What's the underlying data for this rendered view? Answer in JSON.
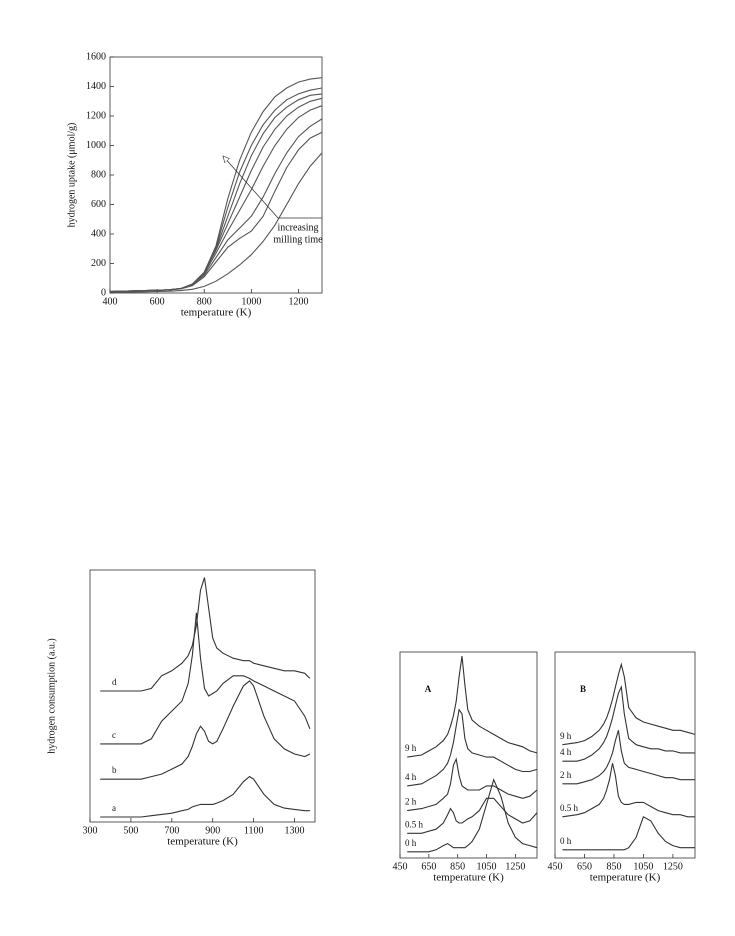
{
  "chart_data": [
    {
      "type": "line",
      "x_label": "temperature (K)",
      "y_label": "hydrogen uptake (μmol/g)",
      "annotation": [
        "increasing",
        "milling time"
      ],
      "color": "#555555",
      "xlim": [
        400,
        1300
      ],
      "ylim": [
        0,
        1600
      ],
      "xticks": [
        400,
        600,
        800,
        1000,
        1200
      ],
      "yticks": [
        0,
        200,
        400,
        600,
        800,
        1000,
        1200,
        1400,
        1600
      ],
      "x": [
        400,
        450,
        500,
        550,
        600,
        650,
        700,
        750,
        800,
        850,
        900,
        950,
        1000,
        1050,
        1100,
        1150,
        1200,
        1250,
        1300
      ],
      "series": [
        {
          "values": [
            10,
            12,
            14,
            16,
            18,
            22,
            30,
            60,
            140,
            320,
            640,
            900,
            1090,
            1230,
            1330,
            1390,
            1430,
            1450,
            1460
          ]
        },
        {
          "values": [
            10,
            12,
            14,
            16,
            18,
            22,
            30,
            60,
            140,
            310,
            580,
            820,
            1000,
            1140,
            1240,
            1310,
            1350,
            1375,
            1390
          ]
        },
        {
          "values": [
            10,
            12,
            14,
            16,
            18,
            22,
            30,
            60,
            140,
            300,
            520,
            740,
            930,
            1080,
            1190,
            1260,
            1310,
            1340,
            1350
          ]
        },
        {
          "values": [
            10,
            12,
            14,
            16,
            18,
            22,
            30,
            60,
            140,
            290,
            470,
            650,
            830,
            990,
            1110,
            1200,
            1260,
            1300,
            1320
          ]
        },
        {
          "values": [
            10,
            12,
            14,
            16,
            18,
            22,
            30,
            60,
            130,
            270,
            420,
            560,
            700,
            860,
            1000,
            1110,
            1190,
            1240,
            1270
          ]
        },
        {
          "values": [
            10,
            12,
            14,
            16,
            18,
            22,
            30,
            55,
            120,
            240,
            360,
            440,
            520,
            650,
            810,
            950,
            1060,
            1130,
            1180
          ]
        },
        {
          "values": [
            10,
            12,
            14,
            16,
            18,
            22,
            28,
            50,
            110,
            210,
            310,
            370,
            420,
            520,
            690,
            850,
            970,
            1050,
            1090
          ]
        },
        {
          "values": [
            5,
            6,
            7,
            8,
            10,
            12,
            16,
            25,
            45,
            80,
            130,
            190,
            260,
            350,
            460,
            600,
            740,
            860,
            950
          ]
        }
      ]
    },
    {
      "type": "line",
      "x_label": "temperature (K)",
      "y_label": "hydrogen consumption (a.u.)",
      "color": "#333333",
      "xlim": [
        300,
        1400
      ],
      "ylim": [
        0,
        100
      ],
      "xticks": [
        300,
        500,
        700,
        900,
        1100,
        1300
      ],
      "x": [
        350,
        400,
        450,
        500,
        550,
        600,
        650,
        700,
        750,
        780,
        800,
        820,
        840,
        860,
        880,
        900,
        920,
        950,
        1000,
        1050,
        1080,
        1100,
        1150,
        1200,
        1250,
        1300,
        1350,
        1375
      ],
      "series": [
        {
          "name": "a",
          "values": [
            2,
            2,
            2,
            2,
            2,
            2.5,
            3,
            3.5,
            4.5,
            5,
            6,
            6.5,
            7,
            7,
            7,
            7,
            7.5,
            8.5,
            11,
            16,
            18,
            17,
            11,
            7,
            5.5,
            5,
            4.5,
            4.5
          ]
        },
        {
          "name": "b",
          "values": [
            17,
            17,
            17,
            17,
            17,
            18,
            19,
            21,
            23,
            26,
            30,
            35,
            38,
            36,
            32,
            31,
            32,
            37,
            46,
            54,
            56,
            54,
            42,
            33,
            29,
            27,
            26,
            27
          ]
        },
        {
          "name": "c",
          "values": [
            31,
            31,
            31,
            31,
            31,
            33,
            40,
            44,
            48,
            55,
            66,
            83,
            65,
            53,
            50,
            51,
            52,
            55,
            58,
            58,
            57,
            56,
            54,
            52,
            50,
            48,
            42,
            37
          ]
        },
        {
          "name": "d",
          "values": [
            52,
            52,
            52,
            52,
            52,
            53,
            58,
            60,
            63,
            66,
            70,
            78,
            92,
            97,
            85,
            73,
            69,
            67,
            65,
            64,
            64,
            63,
            62,
            61,
            60,
            60,
            59,
            57
          ]
        }
      ]
    },
    {
      "type": "line",
      "title": "A",
      "x_label": "temperature (K)",
      "color": "#333333",
      "xlim": [
        450,
        1400
      ],
      "ylim": [
        0,
        100
      ],
      "xticks": [
        450,
        650,
        850,
        1050,
        1250
      ],
      "x": [
        500,
        600,
        650,
        700,
        750,
        780,
        800,
        820,
        840,
        860,
        880,
        900,
        920,
        950,
        1000,
        1050,
        1100,
        1150,
        1200,
        1250,
        1300,
        1350,
        1400
      ],
      "series": [
        {
          "name": "0 h",
          "values": [
            3,
            3,
            3,
            4,
            6,
            7,
            6,
            5,
            5,
            5,
            5,
            5,
            6,
            8,
            14,
            26,
            38,
            30,
            17,
            10,
            7,
            6,
            5
          ]
        },
        {
          "name": "0.5 h",
          "values": [
            12,
            12,
            13,
            14,
            17,
            21,
            24,
            22,
            18,
            17,
            17,
            18,
            19,
            20,
            23,
            29,
            29,
            25,
            21,
            19,
            17,
            18,
            22
          ]
        },
        {
          "name": "2 h",
          "values": [
            23,
            24,
            25,
            26,
            29,
            31,
            36,
            45,
            48,
            40,
            35,
            34,
            33,
            33,
            33,
            35,
            35,
            33,
            31,
            30,
            29,
            30,
            33
          ]
        },
        {
          "name": "4 h",
          "values": [
            35,
            36,
            38,
            40,
            43,
            46,
            50,
            56,
            64,
            72,
            70,
            58,
            53,
            51,
            50,
            49,
            49,
            47,
            45,
            43,
            42,
            42,
            43
          ]
        },
        {
          "name": "9 h",
          "values": [
            49,
            50,
            52,
            54,
            57,
            60,
            64,
            69,
            76,
            88,
            98,
            84,
            72,
            67,
            64,
            62,
            60,
            58,
            56,
            55,
            54,
            52,
            51
          ]
        }
      ]
    },
    {
      "type": "line",
      "title": "B",
      "x_label": "temperature (K)",
      "color": "#333333",
      "xlim": [
        450,
        1400
      ],
      "ylim": [
        0,
        100
      ],
      "xticks": [
        450,
        650,
        850,
        1050,
        1250
      ],
      "x": [
        500,
        600,
        650,
        700,
        750,
        780,
        800,
        820,
        840,
        860,
        880,
        900,
        920,
        950,
        1000,
        1050,
        1100,
        1150,
        1200,
        1250,
        1300,
        1350,
        1400
      ],
      "series": [
        {
          "name": "0 h",
          "values": [
            4,
            4,
            4,
            4,
            4,
            4,
            4,
            4,
            4,
            4,
            4,
            4,
            4,
            5,
            10,
            20,
            18,
            12,
            8,
            6,
            5,
            5,
            5
          ]
        },
        {
          "name": "0.5 h",
          "values": [
            20,
            21,
            22,
            24,
            26,
            29,
            33,
            38,
            46,
            40,
            30,
            27,
            26,
            26,
            27,
            27,
            25,
            23,
            22,
            21,
            21,
            20,
            20
          ]
        },
        {
          "name": "2 h",
          "values": [
            36,
            36,
            37,
            38,
            40,
            42,
            44,
            47,
            51,
            57,
            62,
            52,
            46,
            44,
            43,
            42,
            41,
            40,
            39,
            39,
            38,
            38,
            38
          ]
        },
        {
          "name": "4 h",
          "values": [
            47,
            47,
            48,
            50,
            53,
            56,
            59,
            63,
            68,
            74,
            80,
            83,
            70,
            58,
            55,
            54,
            53,
            53,
            52,
            52,
            51,
            51,
            51
          ]
        },
        {
          "name": "9 h",
          "values": [
            55,
            56,
            57,
            59,
            62,
            65,
            68,
            72,
            77,
            83,
            89,
            94,
            88,
            73,
            68,
            66,
            65,
            64,
            63,
            62,
            62,
            61,
            60
          ]
        }
      ]
    }
  ]
}
